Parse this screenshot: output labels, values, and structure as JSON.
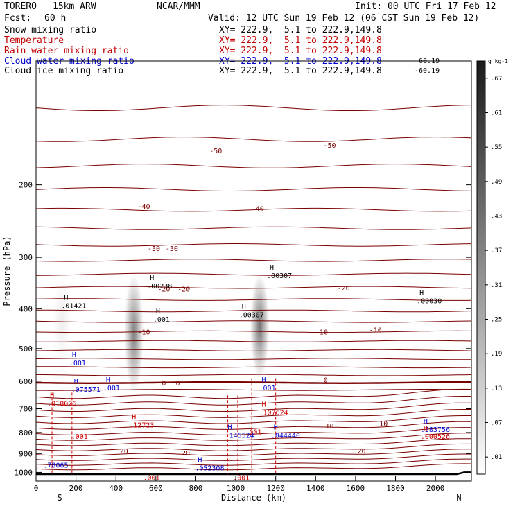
{
  "header": {
    "model": "TORERO",
    "resolution": "15km ARW",
    "center": "NCAR/MMM",
    "init": "Init: 00 UTC Fri 17 Feb 12",
    "fcst_label": "Fcst:",
    "fcst_value": "60 h",
    "valid": "Valid: 12 UTC Sun 19 Feb 12 (06 CST Sun 19 Feb 12)"
  },
  "fields": [
    {
      "name": "Snow mixing ratio",
      "xy": "XY= 222.9,  5.1 to 222.9,149.8",
      "color": "#000000"
    },
    {
      "name": "Temperature",
      "xy": "XY= 222.9,  5.1 to 222.9,149.8",
      "color": "#c00000"
    },
    {
      "name": "Rain water mixing ratio",
      "xy": "XY= 222.9,  5.1 to 222.9,149.8",
      "color": "#c00000"
    },
    {
      "name": "Cloud water mixing ratio",
      "xy": "XY= 222.9,  5.1 to 222.9,149.8",
      "color": "#0000cc"
    },
    {
      "name": "Cloud ice mixing ratio",
      "xy": "XY= 222.9,  5.1 to 222.9,149.8",
      "color": "#000000"
    }
  ],
  "overlap_labels": [
    "-60.19",
    "-60.19"
  ],
  "chart_data": {
    "type": "cross-section",
    "xlabel": "Distance (km)",
    "ylabel": "Pressure (hPa)",
    "xlim": [
      0,
      2180
    ],
    "ylim": [
      1050,
      100
    ],
    "y_scale": "log",
    "x_ticks": [
      0,
      200,
      400,
      600,
      800,
      1000,
      1200,
      1400,
      1600,
      1800,
      2000
    ],
    "y_ticks": [
      200,
      300,
      400,
      500,
      600,
      700,
      800,
      900,
      1000
    ],
    "endpoints": {
      "left": "S",
      "right": "N"
    },
    "colorbar": {
      "unit": "g kg-1",
      "ticks": [
        ".01",
        ".07",
        ".13",
        ".19",
        ".25",
        ".31",
        ".37",
        ".43",
        ".49",
        ".55",
        ".61",
        ".67"
      ]
    },
    "snow_columns": [
      {
        "x_km": 490,
        "p_top": 330,
        "p_bot": 640,
        "peak": 0.6
      },
      {
        "x_km": 1120,
        "p_top": 330,
        "p_bot": 590,
        "peak": 0.65
      },
      {
        "x_km": 130,
        "p_top": 330,
        "p_bot": 560,
        "peak": 0.08
      }
    ],
    "temperature_levels": [
      {
        "value": "-50",
        "p": 160
      },
      {
        "value": "-40",
        "p": 230
      },
      {
        "value": "-30",
        "p": 290
      },
      {
        "value": "-20",
        "p": 360
      },
      {
        "value": "-10",
        "p": 460
      },
      {
        "value": "0",
        "p": 600
      },
      {
        "value": "10",
        "p": 760
      },
      {
        "value": "20",
        "p": 880
      }
    ],
    "temperature_labels": [
      {
        "text": "-50",
        "x_km": 900,
        "p": 165
      },
      {
        "text": "-50",
        "x_km": 1470,
        "p": 160
      },
      {
        "text": "-40",
        "x_km": 540,
        "p": 225
      },
      {
        "text": "-40",
        "x_km": 1110,
        "p": 228
      },
      {
        "text": "-30",
        "x_km": 590,
        "p": 285
      },
      {
        "text": "-30",
        "x_km": 680,
        "p": 285
      },
      {
        "text": "-20",
        "x_km": 640,
        "p": 358
      },
      {
        "text": "-20",
        "x_km": 740,
        "p": 358
      },
      {
        "text": "-20",
        "x_km": 1540,
        "p": 356
      },
      {
        "text": "-10",
        "x_km": 540,
        "p": 455
      },
      {
        "text": "-10",
        "x_km": 1430,
        "p": 455
      },
      {
        "text": "-10",
        "x_km": 1700,
        "p": 450
      },
      {
        "text": "0",
        "x_km": 640,
        "p": 605
      },
      {
        "text": "0",
        "x_km": 710,
        "p": 605
      },
      {
        "text": "0",
        "x_km": 1450,
        "p": 595
      },
      {
        "text": "10",
        "x_km": 1470,
        "p": 770
      },
      {
        "text": "10",
        "x_km": 1740,
        "p": 760
      },
      {
        "text": "20",
        "x_km": 440,
        "p": 885
      },
      {
        "text": "20",
        "x_km": 750,
        "p": 895
      },
      {
        "text": "20",
        "x_km": 1630,
        "p": 885
      }
    ],
    "maxima": [
      {
        "label": "H",
        "value": ".01421",
        "x_km": 140,
        "p": 385,
        "field": "cloud_ice"
      },
      {
        "label": "H",
        "value": ".00238",
        "x_km": 570,
        "p": 345,
        "field": "cloud_ice"
      },
      {
        "label": "H",
        "value": ".001",
        "x_km": 600,
        "p": 415,
        "field": "cloud_ice"
      },
      {
        "label": "H",
        "value": ".00307",
        "x_km": 1170,
        "p": 325,
        "field": "cloud_ice"
      },
      {
        "label": "H",
        "value": ".00307",
        "x_km": 1030,
        "p": 405,
        "field": "cloud_ice"
      },
      {
        "label": "H",
        "value": ".00030",
        "x_km": 1920,
        "p": 375,
        "field": "cloud_ice"
      },
      {
        "label": "H",
        "value": ".001",
        "x_km": 180,
        "p": 530,
        "field": "cloud_water"
      },
      {
        "label": "H",
        "value": ".075571",
        "x_km": 190,
        "p": 615,
        "field": "cloud_water"
      },
      {
        "label": "H",
        "value": ".001",
        "x_km": 350,
        "p": 610,
        "field": "cloud_water"
      },
      {
        "label": "H",
        "value": ".001",
        "x_km": 1130,
        "p": 610,
        "field": "cloud_water"
      },
      {
        "label": "H",
        "value": ".145524",
        "x_km": 960,
        "p": 795,
        "field": "cloud_water"
      },
      {
        "label": "H",
        "value": ".044440",
        "x_km": 1190,
        "p": 795,
        "field": "cloud_water"
      },
      {
        "label": "H",
        "value": ".383756",
        "x_km": 1940,
        "p": 770,
        "field": "cloud_water"
      },
      {
        "label": "",
        "value": ".78065",
        "x_km": 50,
        "p": 940,
        "field": "cloud_water"
      },
      {
        "label": "H",
        "value": ".052308",
        "x_km": 810,
        "p": 955,
        "field": "cloud_water"
      },
      {
        "label": "H",
        "value": ".018026",
        "x_km": 70,
        "p": 665,
        "field": "rain_water"
      },
      {
        "label": "H",
        "value": ".107624",
        "x_km": 1130,
        "p": 700,
        "field": "rain_water"
      },
      {
        "label": "H",
        "value": ".12723",
        "x_km": 480,
        "p": 750,
        "field": "rain_water"
      },
      {
        "label": "",
        "value": ".001",
        "x_km": 190,
        "p": 800,
        "field": "rain_water"
      },
      {
        "label": "",
        "value": ".001",
        "x_km": 1060,
        "p": 780,
        "field": "rain_water"
      },
      {
        "label": "H",
        "value": ".000526",
        "x_km": 1940,
        "p": 800,
        "field": "rain_water"
      },
      {
        "label": "",
        "value": ".001",
        "x_km": 550,
        "p": 1008,
        "field": "rain_water"
      },
      {
        "label": "",
        "value": ".001",
        "x_km": 1000,
        "p": 1008,
        "field": "rain_water"
      }
    ]
  }
}
